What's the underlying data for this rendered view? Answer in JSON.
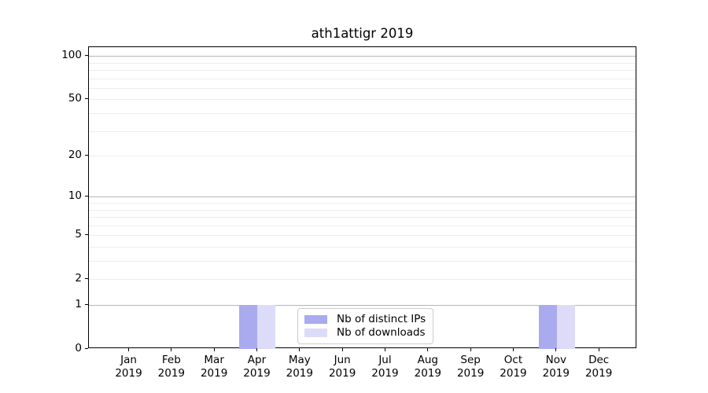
{
  "figure": {
    "background": "#ffffff",
    "text_color": "#000000"
  },
  "chart_data": {
    "type": "bar",
    "title": "ath1attigr 2019",
    "categories": [
      "Jan",
      "Feb",
      "Mar",
      "Apr",
      "May",
      "Jun",
      "Jul",
      "Aug",
      "Sep",
      "Oct",
      "Nov",
      "Dec"
    ],
    "year_label": "2019",
    "series": [
      {
        "name": "Nb of distinct IPs",
        "color": "#aaaaee",
        "values": [
          0,
          0,
          0,
          1,
          0,
          0,
          0,
          0,
          0,
          0,
          1,
          0
        ]
      },
      {
        "name": "Nb of downloads",
        "color": "#dcdcf9",
        "values": [
          0,
          0,
          0,
          1,
          0,
          0,
          0,
          0,
          0,
          0,
          1,
          0
        ]
      }
    ],
    "xlabel": "",
    "ylabel": "",
    "y_axis": {
      "scale": "log1p",
      "ylim": [
        0,
        115
      ],
      "tick_values": [
        0,
        1,
        2,
        5,
        10,
        20,
        50,
        100
      ],
      "major_grid_values": [
        1,
        10,
        100
      ],
      "minor_grid_values": [
        2,
        3,
        4,
        5,
        6,
        7,
        8,
        9,
        20,
        30,
        40,
        50,
        60,
        70,
        80,
        90
      ]
    },
    "grid": {
      "on": true,
      "major_color": "#b5b5b5",
      "minor_color": "#ededed"
    },
    "legend": {
      "position": "lower center",
      "border_color": "#cccccc",
      "background": "#ffffff"
    }
  }
}
